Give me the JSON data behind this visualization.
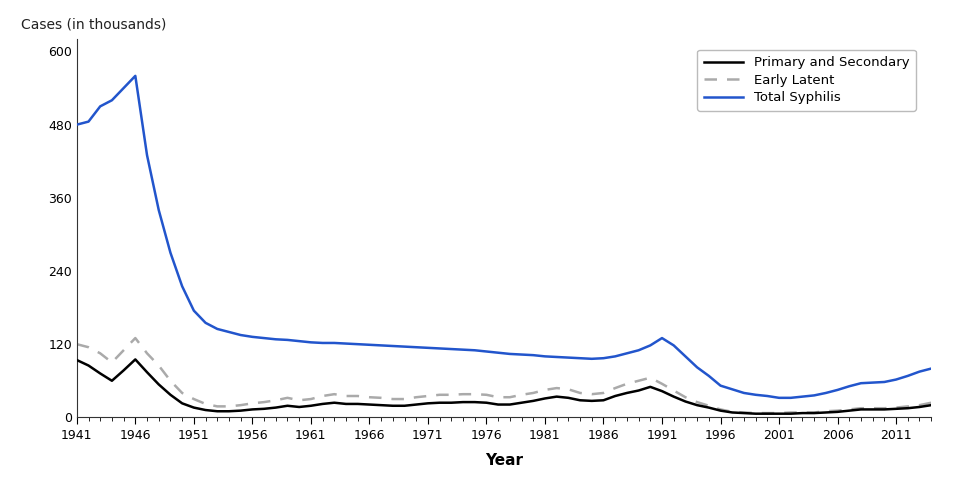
{
  "years": [
    1941,
    1942,
    1943,
    1944,
    1945,
    1946,
    1947,
    1948,
    1949,
    1950,
    1951,
    1952,
    1953,
    1954,
    1955,
    1956,
    1957,
    1958,
    1959,
    1960,
    1961,
    1962,
    1963,
    1964,
    1965,
    1966,
    1967,
    1968,
    1969,
    1970,
    1971,
    1972,
    1973,
    1974,
    1975,
    1976,
    1977,
    1978,
    1979,
    1980,
    1981,
    1982,
    1983,
    1984,
    1985,
    1986,
    1987,
    1988,
    1989,
    1990,
    1991,
    1992,
    1993,
    1994,
    1995,
    1996,
    1997,
    1998,
    1999,
    2000,
    2001,
    2002,
    2003,
    2004,
    2005,
    2006,
    2007,
    2008,
    2009,
    2010,
    2011,
    2012,
    2013,
    2014
  ],
  "primary_secondary": [
    94,
    85,
    72,
    60,
    77,
    95,
    74,
    54,
    37,
    23,
    16,
    12,
    10,
    10,
    11,
    13,
    14,
    16,
    19,
    17,
    19,
    22,
    24,
    22,
    22,
    21,
    20,
    19,
    19,
    21,
    23,
    24,
    24,
    25,
    25,
    24,
    21,
    21,
    24,
    27,
    31,
    34,
    32,
    28,
    27,
    28,
    35,
    40,
    44,
    50,
    43,
    34,
    26,
    20,
    16,
    11,
    8,
    7,
    6,
    6,
    6,
    6,
    7,
    7,
    8,
    9,
    11,
    13,
    13,
    13,
    14,
    15,
    17,
    20
  ],
  "early_latent": [
    120,
    115,
    105,
    90,
    110,
    130,
    105,
    85,
    60,
    40,
    30,
    22,
    18,
    18,
    20,
    23,
    25,
    28,
    32,
    28,
    30,
    35,
    38,
    35,
    35,
    33,
    32,
    30,
    30,
    33,
    35,
    37,
    37,
    38,
    38,
    37,
    33,
    33,
    37,
    40,
    45,
    48,
    46,
    40,
    38,
    40,
    48,
    55,
    60,
    65,
    55,
    44,
    33,
    25,
    19,
    13,
    9,
    8,
    7,
    7,
    7,
    8,
    8,
    8,
    10,
    11,
    13,
    15,
    15,
    15,
    16,
    18,
    20,
    24
  ],
  "total_syphilis": [
    480,
    485,
    510,
    520,
    540,
    560,
    430,
    340,
    270,
    215,
    175,
    155,
    145,
    140,
    135,
    132,
    130,
    128,
    127,
    125,
    123,
    122,
    122,
    121,
    120,
    119,
    118,
    117,
    116,
    115,
    114,
    113,
    112,
    111,
    110,
    108,
    106,
    104,
    103,
    102,
    100,
    99,
    98,
    97,
    96,
    97,
    100,
    105,
    110,
    118,
    130,
    118,
    100,
    82,
    68,
    52,
    46,
    40,
    37,
    35,
    32,
    32,
    34,
    36,
    40,
    45,
    51,
    56,
    57,
    58,
    62,
    68,
    75,
    80
  ],
  "ylabel": "Cases (in thousands)",
  "xlabel": "Year",
  "ylim": [
    0,
    620
  ],
  "yticks": [
    0,
    120,
    240,
    360,
    480,
    600
  ],
  "xtick_labels": [
    "1941",
    "1946",
    "1951",
    "1956",
    "1961",
    "1966",
    "1971",
    "1976",
    "1981",
    "1986",
    "1991",
    "1996",
    "2001",
    "2006",
    "2011"
  ],
  "xtick_years": [
    1941,
    1946,
    1951,
    1956,
    1961,
    1966,
    1971,
    1976,
    1981,
    1986,
    1991,
    1996,
    2001,
    2006,
    2011
  ],
  "line_ps_color": "#000000",
  "line_el_color": "#aaaaaa",
  "line_total_color": "#2255cc",
  "legend_labels": [
    "Primary and Secondary",
    "Early Latent",
    "Total Syphilis"
  ],
  "background_color": "#ffffff"
}
